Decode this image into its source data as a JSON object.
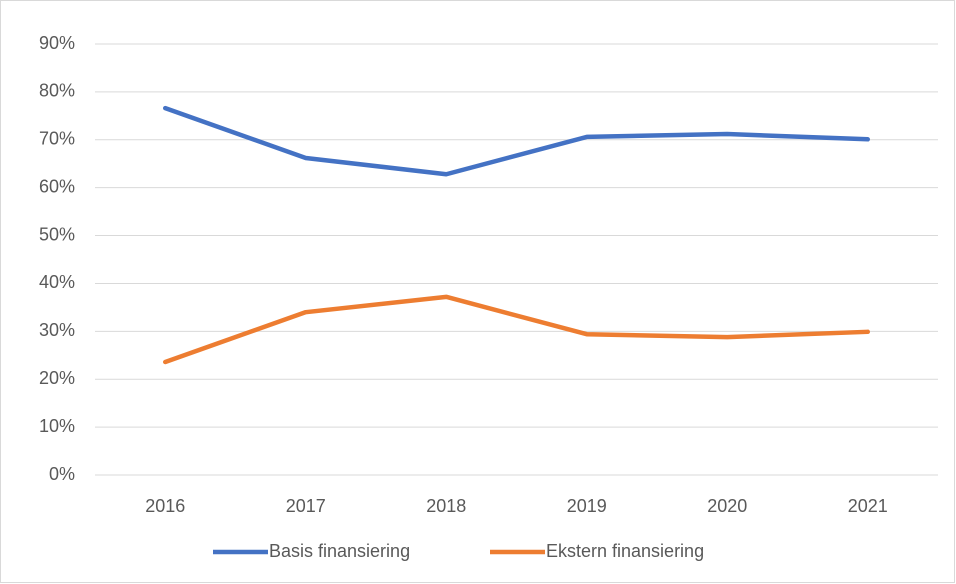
{
  "chart_data": {
    "type": "line",
    "categories": [
      "2016",
      "2017",
      "2018",
      "2019",
      "2020",
      "2021"
    ],
    "series": [
      {
        "name": "Basis finansiering",
        "color": "#4472c4",
        "values": [
          76.6,
          66.2,
          62.8,
          70.6,
          71.2,
          70.1
        ]
      },
      {
        "name": "Ekstern finansiering",
        "color": "#ed7d31",
        "values": [
          23.6,
          34.0,
          37.2,
          29.4,
          28.8,
          29.9
        ]
      }
    ],
    "ylim": [
      0,
      90
    ],
    "yticks": [
      {
        "value": 0,
        "label": "0%"
      },
      {
        "value": 10,
        "label": "10%"
      },
      {
        "value": 20,
        "label": "20%"
      },
      {
        "value": 30,
        "label": "30%"
      },
      {
        "value": 40,
        "label": "40%"
      },
      {
        "value": 50,
        "label": "50%"
      },
      {
        "value": 60,
        "label": "60%"
      },
      {
        "value": 70,
        "label": "70%"
      },
      {
        "value": 80,
        "label": "80%"
      },
      {
        "value": 90,
        "label": "90%"
      }
    ],
    "grid": true,
    "legend": "bottom"
  }
}
